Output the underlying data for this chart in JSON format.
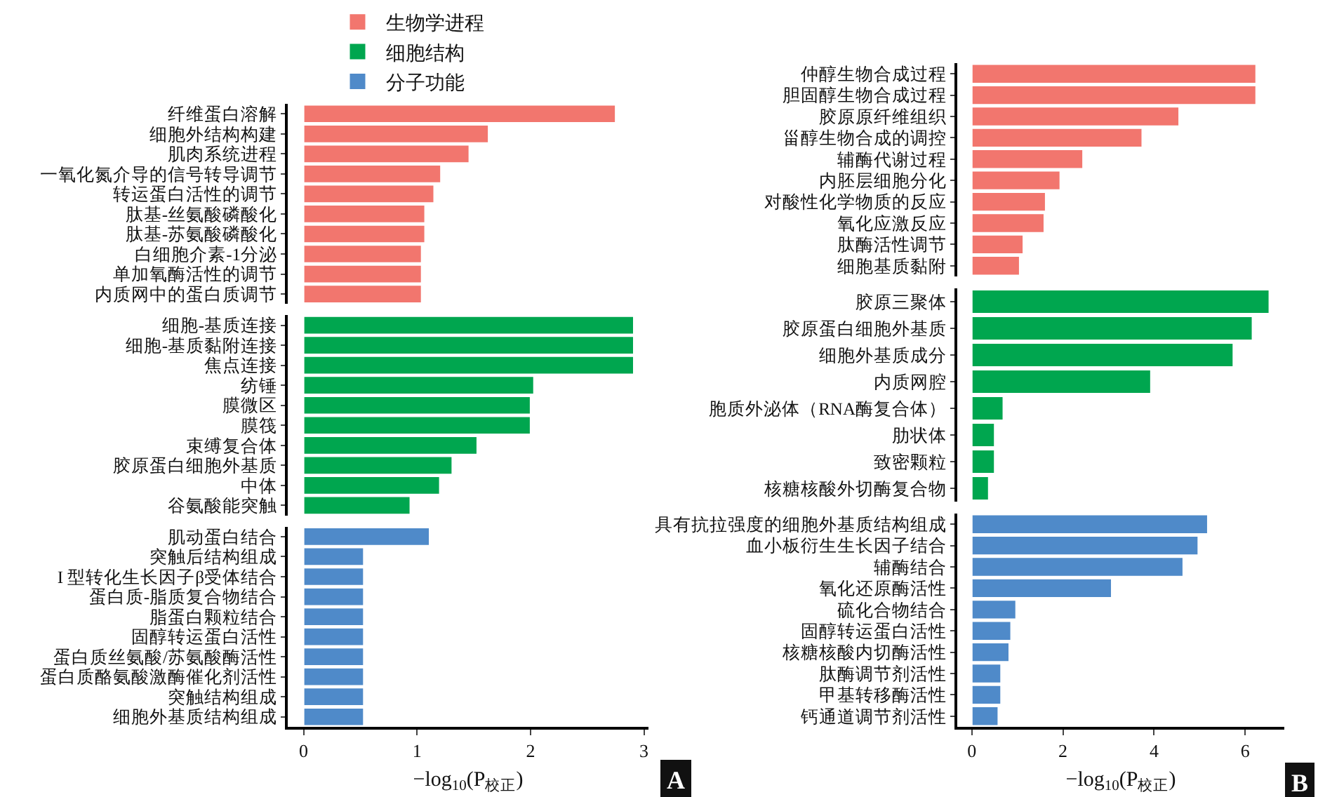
{
  "chart_data": [
    {
      "type": "bar",
      "orientation": "horizontal",
      "xlabel": "−log$_{10}$(P$_{校正}$)",
      "legend": "top",
      "grid": false,
      "xlim": [
        -0.14,
        3.04
      ],
      "xticks": [
        0,
        1,
        2,
        3
      ],
      "annotations": [
        "A"
      ],
      "categories": [
        "纤维蛋白溶解",
        "细胞外结构构建",
        "肌肉系统进程",
        "一氧化氮介导的信号转导调节",
        "转运蛋白活性的调节",
        "肽基-丝氨酸磷酸化",
        "肽基-苏氨酸磷酸化",
        "白细胞介素-1分泌",
        "单加氧酶活性的调节",
        "内质网中的蛋白质调节",
        "细胞-基质连接",
        "细胞-基质黏附连接",
        "焦点连接",
        "纺锤",
        "膜微区",
        "膜筏",
        "束缚复合体",
        "胶原蛋白细胞外基质",
        "中体",
        "谷氨酸能突触",
        "肌动蛋白结合",
        "突触后结构组成",
        "I 型转化生长因子β受体结合",
        "蛋白质-脂质复合物结合",
        "脂蛋白颗粒结合",
        "固醇转运蛋白活性",
        "蛋白质丝氨酸/苏氨酸酶活性",
        "蛋白质酪氨酸激酶催化剂活性",
        "突触结构组成",
        "细胞外基质结构组成"
      ],
      "series": [
        {
          "name": "生物学进程",
          "color": "#f2766e",
          "values": [
            2.75,
            1.63,
            1.46,
            1.21,
            1.15,
            1.07,
            1.07,
            1.04,
            1.04,
            1.04,
            null,
            null,
            null,
            null,
            null,
            null,
            null,
            null,
            null,
            null,
            null,
            null,
            null,
            null,
            null,
            null,
            null,
            null,
            null,
            null
          ]
        },
        {
          "name": "细胞结构",
          "color": "#00a64f",
          "values": [
            null,
            null,
            null,
            null,
            null,
            null,
            null,
            null,
            null,
            null,
            2.91,
            2.91,
            2.91,
            2.03,
            2.0,
            2.0,
            1.53,
            1.31,
            1.2,
            0.94,
            null,
            null,
            null,
            null,
            null,
            null,
            null,
            null,
            null,
            null
          ]
        },
        {
          "name": "分子功能",
          "color": "#4f8ac9",
          "values": [
            null,
            null,
            null,
            null,
            null,
            null,
            null,
            null,
            null,
            null,
            null,
            null,
            null,
            null,
            null,
            null,
            null,
            null,
            null,
            null,
            1.11,
            0.53,
            0.53,
            0.53,
            0.53,
            0.53,
            0.53,
            0.53,
            0.53,
            0.53
          ]
        }
      ]
    },
    {
      "type": "bar",
      "orientation": "horizontal",
      "xlabel": "−log$_{10}$(P$_{校正}$)",
      "grid": false,
      "xlim": [
        -0.32,
        6.86
      ],
      "xticks": [
        0,
        2,
        4,
        6
      ],
      "annotations": [
        "B"
      ],
      "categories": [
        "仲醇生物合成过程",
        "胆固醇生物合成过程",
        "胶原原纤维组织",
        "甾醇生物合成的调控",
        "辅酶代谢过程",
        "内胚层细胞分化",
        "对酸性化学物质的反应",
        "氧化应激反应",
        "肽酶活性调节",
        "细胞基质黏附",
        "胶原三聚体",
        "胶原蛋白细胞外基质",
        "细胞外基质成分",
        "内质网腔",
        "胞质外泌体（RNA酶复合体）",
        "肋状体",
        "致密颗粒",
        "核糖核酸外切酶复合物",
        "具有抗拉强度的细胞外基质结构组成",
        "血小板衍生生长因子结合",
        "辅酶结合",
        "氧化还原酶活性",
        "硫化合物结合",
        "固醇转运蛋白活性",
        "核糖核酸内切酶活性",
        "肽酶调节剂活性",
        "甲基转移酶活性",
        "钙通道调节剂活性"
      ],
      "series": [
        {
          "color": "#f2766e",
          "values": [
            6.24,
            6.24,
            4.55,
            3.74,
            2.44,
            1.94,
            1.62,
            1.59,
            1.13,
            1.05,
            null,
            null,
            null,
            null,
            null,
            null,
            null,
            null,
            null,
            null,
            null,
            null,
            null,
            null,
            null,
            null,
            null,
            null
          ]
        },
        {
          "color": "#00a64f",
          "values": [
            null,
            null,
            null,
            null,
            null,
            null,
            null,
            null,
            null,
            null,
            6.53,
            6.16,
            5.74,
            3.93,
            0.69,
            0.5,
            0.5,
            0.37,
            null,
            null,
            null,
            null,
            null,
            null,
            null,
            null,
            null,
            null
          ]
        },
        {
          "color": "#4f8ac9",
          "values": [
            null,
            null,
            null,
            null,
            null,
            null,
            null,
            null,
            null,
            null,
            null,
            null,
            null,
            null,
            null,
            null,
            null,
            null,
            5.18,
            4.97,
            4.64,
            3.07,
            0.97,
            0.86,
            0.82,
            0.64,
            0.64,
            0.58
          ]
        }
      ]
    }
  ]
}
